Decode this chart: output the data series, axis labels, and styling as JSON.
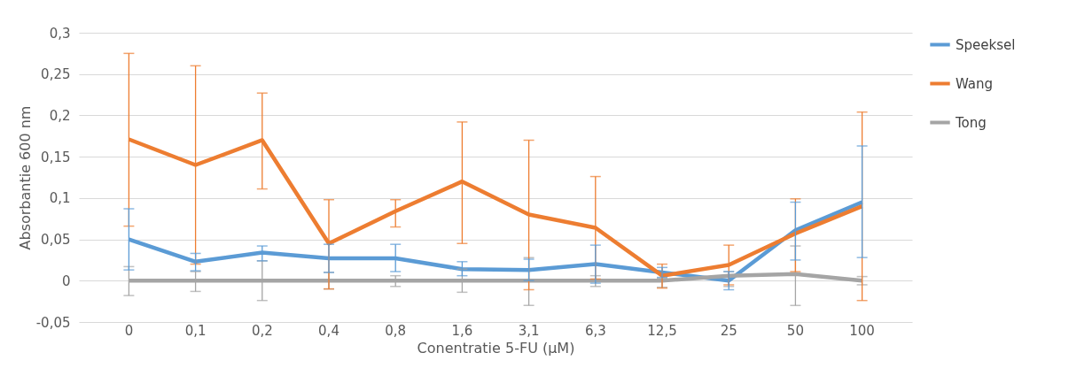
{
  "chart_data": {
    "type": "line",
    "xlabel": "Conentratie 5-FU (µM)",
    "ylabel": "Absorbantie 600 nm",
    "categories": [
      "0",
      "0,1",
      "0,2",
      "0,4",
      "0,8",
      "1,6",
      "3,1",
      "6,3",
      "12,5",
      "25",
      "50",
      "100"
    ],
    "ylim": [
      -0.05,
      0.3
    ],
    "yticks": [
      {
        "value": -0.05,
        "label": "-0,05"
      },
      0,
      {
        "value": 0.05,
        "label": "0,05"
      },
      {
        "value": 0.1,
        "label": "0,1"
      },
      {
        "value": 0.15,
        "label": "0,15"
      },
      {
        "value": 0.2,
        "label": "0,2"
      },
      {
        "value": 0.25,
        "label": "0,25"
      },
      {
        "value": 0.3,
        "label": "0,3"
      }
    ],
    "grid": "y",
    "legend": "right",
    "marker": "none",
    "line_style": "solid",
    "series": [
      {
        "name": "Speeksel",
        "color": "#5b9bd5",
        "values": [
          0.05,
          0.023,
          0.034,
          0.027,
          0.027,
          0.014,
          0.013,
          0.02,
          0.01,
          0.0,
          0.061,
          0.095
        ],
        "errors": [
          [
            0.013,
            0.087
          ],
          [
            0.012,
            0.033
          ],
          [
            0.024,
            0.042
          ],
          [
            0.01,
            0.044
          ],
          [
            0.011,
            0.044
          ],
          [
            0.006,
            0.023
          ],
          [
            0.0,
            0.026
          ],
          [
            -0.003,
            0.043
          ],
          [
            0.004,
            0.016
          ],
          [
            -0.011,
            0.011
          ],
          [
            0.025,
            0.095
          ],
          [
            0.028,
            0.163
          ]
        ]
      },
      {
        "name": "Wang",
        "color": "#ed7d31",
        "values": [
          0.171,
          0.14,
          0.17,
          0.045,
          0.084,
          0.12,
          0.08,
          0.064,
          0.006,
          0.019,
          0.057,
          0.09
        ],
        "errors": [
          [
            0.066,
            0.275
          ],
          [
            0.02,
            0.26
          ],
          [
            0.111,
            0.227
          ],
          [
            -0.01,
            0.098
          ],
          [
            0.065,
            0.098
          ],
          [
            0.045,
            0.192
          ],
          [
            -0.011,
            0.17
          ],
          [
            0.002,
            0.126
          ],
          [
            -0.009,
            0.02
          ],
          [
            -0.005,
            0.043
          ],
          [
            0.011,
            0.099
          ],
          [
            -0.024,
            0.204
          ]
        ]
      },
      {
        "name": "Tong",
        "color": "#a5a5a5",
        "values": [
          0,
          0,
          0,
          0,
          0,
          0,
          0,
          0,
          0,
          0.006,
          0.008,
          0
        ],
        "errors": [
          [
            -0.018,
            0.017
          ],
          [
            -0.013,
            0.011
          ],
          [
            -0.024,
            0.024
          ],
          [
            -0.01,
            0.01
          ],
          [
            -0.007,
            0.006
          ],
          [
            -0.014,
            0.014
          ],
          [
            -0.03,
            0.028
          ],
          [
            -0.007,
            0.006
          ],
          [
            -0.008,
            0.003
          ],
          [
            -0.007,
            0.011
          ],
          [
            -0.03,
            0.042
          ],
          [
            -0.005,
            0.005
          ]
        ]
      }
    ]
  }
}
